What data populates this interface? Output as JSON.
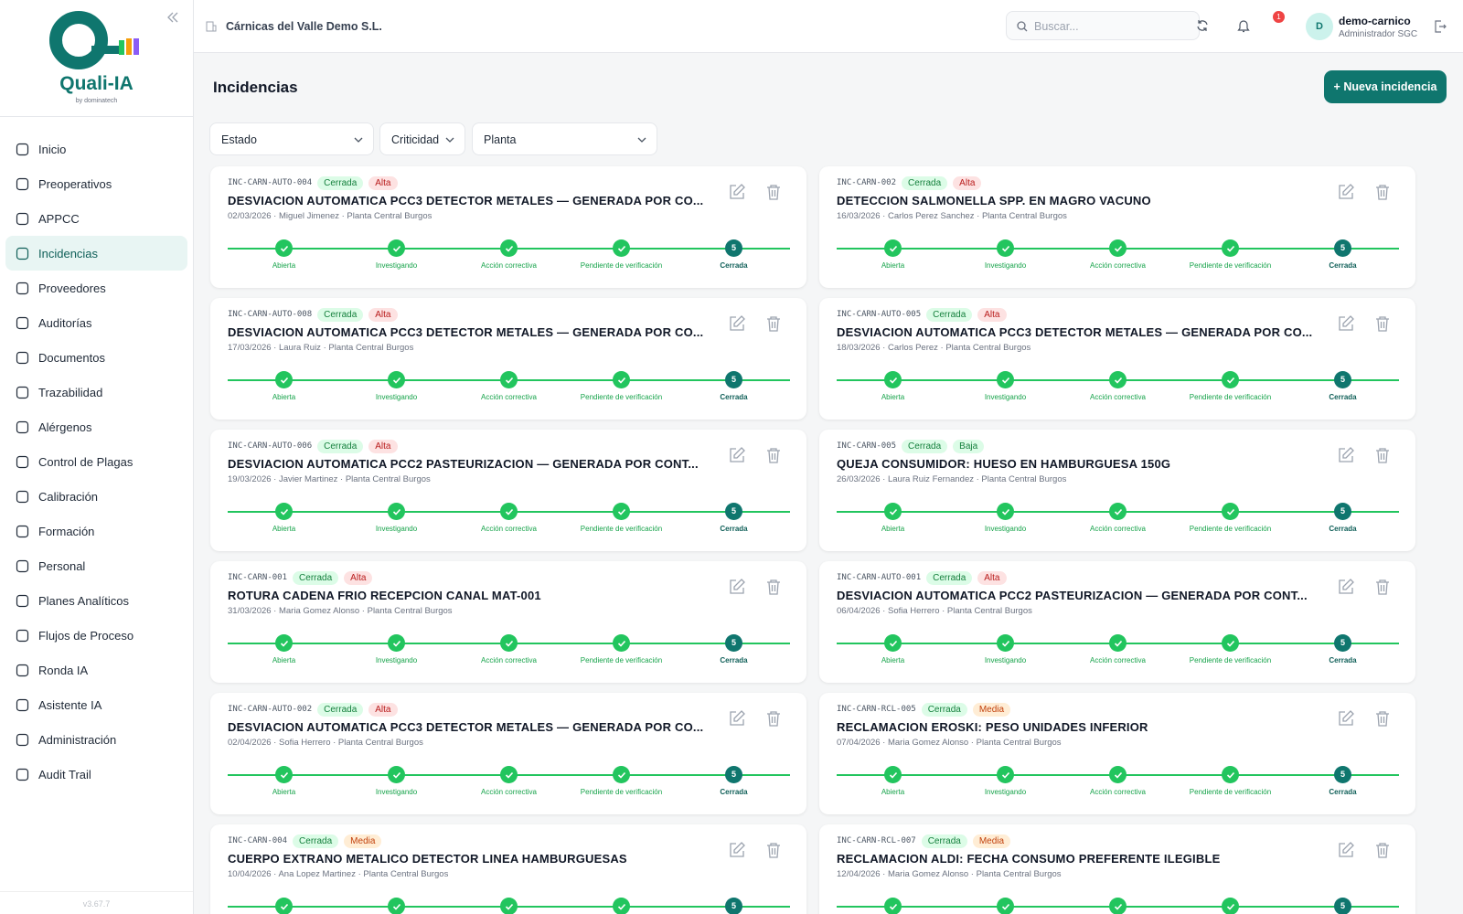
{
  "sidebar": {
    "brand": "Quali-IA",
    "brand_sub": "by dominatech",
    "version": "v3.67.7",
    "nav": [
      "Inicio",
      "Preoperativos",
      "APPCC",
      "Incidencias",
      "Proveedores",
      "Auditorías",
      "Documentos",
      "Trazabilidad",
      "Alérgenos",
      "Control de Plagas",
      "Calibración",
      "Formación",
      "Personal",
      "Planes Analíticos",
      "Flujos de Proceso",
      "Ronda IA",
      "Asistente IA",
      "Administración",
      "Audit Trail"
    ],
    "active": 3
  },
  "header": {
    "company": "Cárnicas del Valle Demo S.L.",
    "search_placeholder": "Buscar...",
    "notifications": "1",
    "avatar": "D",
    "user": "demo-carnico",
    "role": "Administrador SGC"
  },
  "page": {
    "title": "Incidencias",
    "new_button": "+ Nueva incidencia",
    "filters": [
      "Estado",
      "Criticidad",
      "Planta"
    ]
  },
  "steps": [
    {
      "label": "Abierta"
    },
    {
      "label": "Investigando"
    },
    {
      "label": "Acción correctiva"
    },
    {
      "label": "Pendiente de verificación"
    },
    {
      "label": "Cerrada",
      "number": "5"
    }
  ],
  "incidents": [
    {
      "code": "INC-CARN-AUTO-004",
      "status": "Cerrada",
      "criticality": {
        "text": "Alta",
        "color": "#b91c1c",
        "bg": "#fde2e2"
      },
      "title": "DESVIACION AUTOMATICA PCC3 DETECTOR METALES — GENERADA POR CO...",
      "meta": "02/03/2026 · Miguel Jimenez · Planta Central Burgos"
    },
    {
      "code": "INC-CARN-002",
      "status": "Cerrada",
      "criticality": {
        "text": "Alta",
        "color": "#b91c1c",
        "bg": "#fde2e2"
      },
      "title": "DETECCION SALMONELLA SPP. EN MAGRO VACUNO",
      "meta": "16/03/2026 · Carlos Perez Sanchez · Planta Central Burgos"
    },
    {
      "code": "INC-CARN-AUTO-008",
      "status": "Cerrada",
      "criticality": {
        "text": "Alta",
        "color": "#b91c1c",
        "bg": "#fde2e2"
      },
      "title": "DESVIACION AUTOMATICA PCC3 DETECTOR METALES — GENERADA POR CO...",
      "meta": "17/03/2026 · Laura Ruiz · Planta Central Burgos"
    },
    {
      "code": "INC-CARN-AUTO-005",
      "status": "Cerrada",
      "criticality": {
        "text": "Alta",
        "color": "#b91c1c",
        "bg": "#fde2e2"
      },
      "title": "DESVIACION AUTOMATICA PCC3 DETECTOR METALES — GENERADA POR CO...",
      "meta": "18/03/2026 · Carlos Perez · Planta Central Burgos"
    },
    {
      "code": "INC-CARN-AUTO-006",
      "status": "Cerrada",
      "criticality": {
        "text": "Alta",
        "color": "#b91c1c",
        "bg": "#fde2e2"
      },
      "title": "DESVIACION AUTOMATICA PCC2 PASTEURIZACION — GENERADA POR CONT...",
      "meta": "19/03/2026 · Javier Martinez · Planta Central Burgos"
    },
    {
      "code": "INC-CARN-005",
      "status": "Cerrada",
      "criticality": {
        "text": "Baja",
        "color": "#15803d",
        "bg": "#dcfce7"
      },
      "title": "QUEJA CONSUMIDOR: HUESO EN HAMBURGUESA 150G",
      "meta": "26/03/2026 · Laura Ruiz Fernandez · Planta Central Burgos"
    },
    {
      "code": "INC-CARN-001",
      "status": "Cerrada",
      "criticality": {
        "text": "Alta",
        "color": "#b91c1c",
        "bg": "#fde2e2"
      },
      "title": "ROTURA CADENA FRIO RECEPCION CANAL MAT-001",
      "meta": "31/03/2026 · Maria Gomez Alonso · Planta Central Burgos"
    },
    {
      "code": "INC-CARN-AUTO-001",
      "status": "Cerrada",
      "criticality": {
        "text": "Alta",
        "color": "#b91c1c",
        "bg": "#fde2e2"
      },
      "title": "DESVIACION AUTOMATICA PCC2 PASTEURIZACION — GENERADA POR CONT...",
      "meta": "06/04/2026 · Sofia Herrero · Planta Central Burgos"
    },
    {
      "code": "INC-CARN-AUTO-002",
      "status": "Cerrada",
      "criticality": {
        "text": "Alta",
        "color": "#b91c1c",
        "bg": "#fde2e2"
      },
      "title": "DESVIACION AUTOMATICA PCC3 DETECTOR METALES — GENERADA POR CO...",
      "meta": "02/04/2026 · Sofia Herrero · Planta Central Burgos"
    },
    {
      "code": "INC-CARN-RCL-005",
      "status": "Cerrada",
      "criticality": {
        "text": "Media",
        "color": "#c2410c",
        "bg": "#ffedd5"
      },
      "title": "RECLAMACION EROSKI: PESO UNIDADES INFERIOR",
      "meta": "07/04/2026 · Maria Gomez Alonso · Planta Central Burgos"
    },
    {
      "code": "INC-CARN-004",
      "status": "Cerrada",
      "criticality": {
        "text": "Media",
        "color": "#c2410c",
        "bg": "#ffedd5"
      },
      "title": "CUERPO EXTRANO METALICO DETECTOR LINEA HAMBURGUESAS",
      "meta": "10/04/2026 · Ana Lopez Martinez · Planta Central Burgos"
    },
    {
      "code": "INC-CARN-RCL-007",
      "status": "Cerrada",
      "criticality": {
        "text": "Media",
        "color": "#c2410c",
        "bg": "#ffedd5"
      },
      "title": "RECLAMACION ALDI: FECHA CONSUMO PREFERENTE ILEGIBLE",
      "meta": "12/04/2026 · Maria Gomez Alonso · Planta Central Burgos"
    }
  ]
}
